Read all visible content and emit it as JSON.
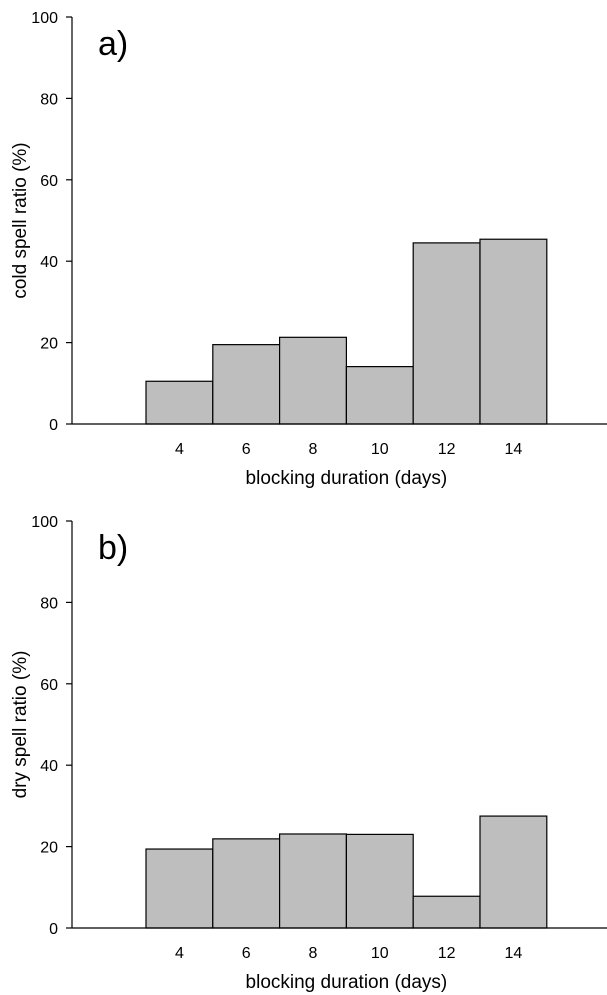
{
  "chart_data": [
    {
      "type": "bar",
      "panel_label": "a)",
      "categories": [
        "4",
        "6",
        "8",
        "10",
        "12",
        "14"
      ],
      "values": [
        10.5,
        19.5,
        21.3,
        14.1,
        44.5,
        45.4
      ],
      "xlabel": "blocking duration (days)",
      "ylabel": "cold spell ratio (%)",
      "ylim": [
        0,
        100
      ],
      "yticks": [
        0,
        20,
        40,
        60,
        80,
        100
      ],
      "bar_color": "#bebebe",
      "grid": false
    },
    {
      "type": "bar",
      "panel_label": "b)",
      "categories": [
        "4",
        "6",
        "8",
        "10",
        "12",
        "14"
      ],
      "values": [
        19.4,
        21.9,
        23.1,
        23.0,
        7.8,
        27.5
      ],
      "xlabel": "blocking duration (days)",
      "ylabel": "dry spell ratio (%)",
      "ylim": [
        0,
        100
      ],
      "yticks": [
        0,
        20,
        40,
        60,
        80,
        100
      ],
      "bar_color": "#bebebe",
      "grid": false
    }
  ]
}
